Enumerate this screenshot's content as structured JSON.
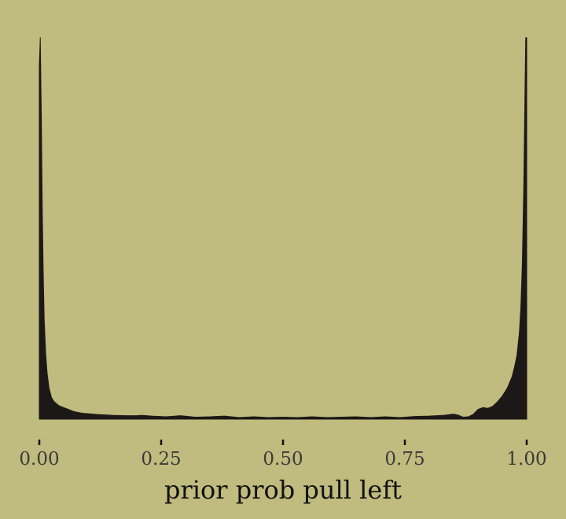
{
  "chart_data": {
    "type": "area",
    "title": "",
    "xlabel": "prior prob pull left",
    "ylabel": "",
    "xlim": [
      0,
      1
    ],
    "ylim": [
      0,
      1
    ],
    "grid": false,
    "x_ticks": [
      0,
      0.25,
      0.5,
      0.75,
      1
    ],
    "x_tick_labels": [
      "0.00",
      "0.25",
      "0.50",
      "0.75",
      "1.00"
    ],
    "y_ticks_shown": false,
    "series": [
      {
        "x": [
          0,
          0.002,
          0.004,
          0.006,
          0.008,
          0.01,
          0.013,
          0.016,
          0.02,
          0.025,
          0.03,
          0.04,
          0.05,
          0.06,
          0.07,
          0.08,
          0.09,
          0.1,
          0.12,
          0.15,
          0.18,
          0.2,
          0.21,
          0.23,
          0.26,
          0.29,
          0.32,
          0.35,
          0.38,
          0.41,
          0.44,
          0.47,
          0.5,
          0.53,
          0.56,
          0.59,
          0.62,
          0.65,
          0.68,
          0.71,
          0.74,
          0.77,
          0.8,
          0.83,
          0.85,
          0.86,
          0.87,
          0.88,
          0.89,
          0.9,
          0.91,
          0.92,
          0.93,
          0.94,
          0.95,
          0.96,
          0.97,
          0.975,
          0.98,
          0.985,
          0.988,
          0.991,
          0.994,
          0.996,
          0.998,
          1.0
        ],
        "y": [
          0.915,
          0.99,
          0.8,
          0.55,
          0.38,
          0.26,
          0.17,
          0.12,
          0.08,
          0.056,
          0.046,
          0.035,
          0.03,
          0.025,
          0.02,
          0.017,
          0.015,
          0.014,
          0.012,
          0.01,
          0.009,
          0.009,
          0.01,
          0.008,
          0.006,
          0.009,
          0.005,
          0.006,
          0.008,
          0.004,
          0.006,
          0.004,
          0.005,
          0.004,
          0.006,
          0.004,
          0.005,
          0.006,
          0.004,
          0.006,
          0.004,
          0.007,
          0.008,
          0.01,
          0.013,
          0.01,
          0.005,
          0.006,
          0.012,
          0.025,
          0.03,
          0.028,
          0.033,
          0.045,
          0.06,
          0.08,
          0.11,
          0.135,
          0.165,
          0.225,
          0.29,
          0.4,
          0.6,
          0.8,
          0.99,
          0.99
        ]
      }
    ]
  }
}
